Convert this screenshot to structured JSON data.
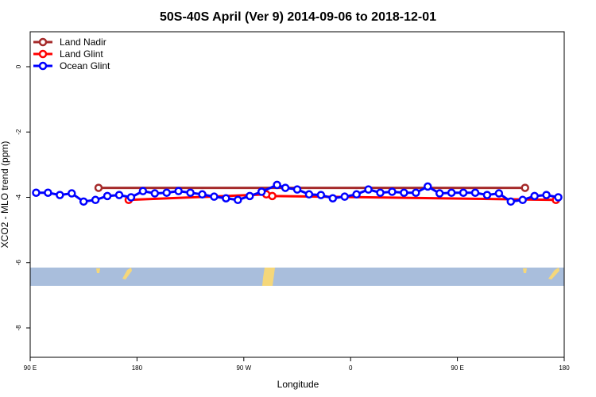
{
  "chart_data": {
    "type": "line",
    "title": "50S-40S April (Ver 9)   2014-09-06 to 2018-12-01",
    "x_label": "Longitude",
    "y_label": "XCO2 - MLO trend (ppm)",
    "xlim": [
      90,
      540
    ],
    "ylim": [
      -8.9,
      1.07
    ],
    "xticks": [
      {
        "value": 90,
        "label": "90 E"
      },
      180,
      {
        "value": 270,
        "label": "90 W"
      },
      {
        "value": 360,
        "label": "0"
      },
      {
        "value": 450,
        "label": "90 E"
      },
      {
        "value": 540,
        "label": "180"
      }
    ],
    "yticks": [
      0,
      -2,
      -4,
      -6,
      -8
    ],
    "legend": "top-left",
    "series": [
      {
        "name": "Land Nadir",
        "color": "#a52a2a",
        "x": [
          147.6,
          507
        ],
        "values": [
          -3.71,
          -3.71
        ]
      },
      {
        "name": "Land Glint",
        "color": "#ff0000",
        "x": [
          173,
          289,
          294,
          533
        ],
        "values": [
          -4.08,
          -3.91,
          -3.96,
          -4.08
        ]
      },
      {
        "name": "Ocean Glint",
        "color": "#0000ff",
        "x": [
          95,
          105,
          115,
          125,
          135,
          145,
          155,
          165,
          175,
          185,
          195,
          205,
          215,
          225,
          235,
          245,
          255,
          265,
          275,
          285,
          298,
          305,
          315,
          325,
          335,
          345,
          355,
          365,
          375,
          385,
          395,
          405,
          415,
          425,
          435,
          445,
          455,
          465,
          475,
          485,
          495,
          505,
          515,
          525,
          535
        ],
        "values": [
          -3.86,
          -3.86,
          -3.93,
          -3.88,
          -4.13,
          -4.08,
          -3.96,
          -3.93,
          -4.0,
          -3.81,
          -3.88,
          -3.86,
          -3.81,
          -3.86,
          -3.91,
          -3.98,
          -4.03,
          -4.08,
          -3.96,
          -3.83,
          -3.62,
          -3.71,
          -3.76,
          -3.91,
          -3.93,
          -4.03,
          -3.98,
          -3.91,
          -3.76,
          -3.86,
          -3.83,
          -3.86,
          -3.86,
          -3.67,
          -3.88,
          -3.86,
          -3.86,
          -3.86,
          -3.93,
          -3.88,
          -4.13,
          -4.08,
          -3.96,
          -3.93,
          -4.0
        ]
      }
    ]
  }
}
